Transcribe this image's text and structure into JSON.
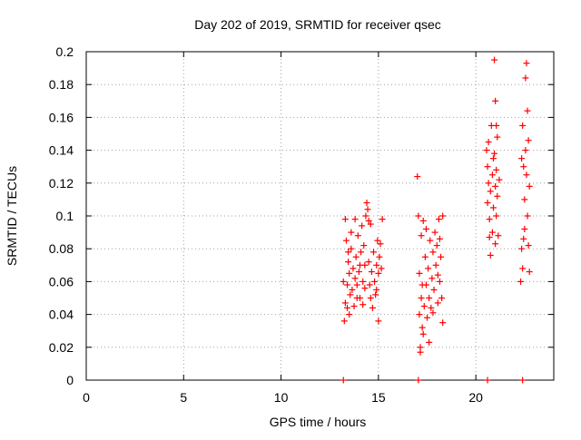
{
  "chart_data": {
    "type": "scatter",
    "title": "Day 202 of 2019, SRMTID for receiver qsec",
    "xlabel": "GPS time / hours",
    "ylabel": "SRMTID / TECUs",
    "xlim": [
      0,
      24
    ],
    "ylim": [
      0,
      0.2
    ],
    "x_ticks": [
      0,
      5,
      10,
      15,
      20
    ],
    "x_tick_labels": [
      "0",
      "5",
      "10",
      "15",
      "20"
    ],
    "y_ticks": [
      0,
      0.02,
      0.04,
      0.06,
      0.08,
      0.1,
      0.12,
      0.14,
      0.16,
      0.18,
      0.2
    ],
    "y_tick_labels": [
      "0",
      "0.02",
      "0.04",
      "0.06",
      "0.08",
      "0.1",
      "0.12",
      "0.14",
      "0.16",
      "0.18",
      "0.2"
    ],
    "grid": true,
    "marker": "+",
    "series": [
      {
        "name": "SRMTID",
        "color": "#ff0000",
        "points": [
          [
            13.2,
            0.06
          ],
          [
            13.3,
            0.047
          ],
          [
            13.3,
            0.098
          ],
          [
            13.35,
            0.085
          ],
          [
            13.4,
            0.058
          ],
          [
            13.45,
            0.072
          ],
          [
            13.5,
            0.04
          ],
          [
            13.5,
            0.065
          ],
          [
            13.55,
            0.052
          ],
          [
            13.6,
            0.09
          ],
          [
            13.65,
            0.055
          ],
          [
            13.7,
            0.068
          ],
          [
            13.75,
            0.045
          ],
          [
            13.8,
            0.098
          ],
          [
            13.8,
            0.062
          ],
          [
            13.85,
            0.075
          ],
          [
            13.9,
            0.058
          ],
          [
            13.95,
            0.088
          ],
          [
            14.0,
            0.066
          ],
          [
            14.05,
            0.05
          ],
          [
            14.1,
            0.078
          ],
          [
            14.15,
            0.094
          ],
          [
            14.2,
            0.06
          ],
          [
            14.25,
            0.082
          ],
          [
            14.3,
            0.07
          ],
          [
            14.35,
            0.1
          ],
          [
            14.4,
            0.108
          ],
          [
            14.45,
            0.104
          ],
          [
            14.5,
            0.097
          ],
          [
            14.5,
            0.072
          ],
          [
            14.55,
            0.058
          ],
          [
            14.6,
            0.05
          ],
          [
            14.65,
            0.066
          ],
          [
            14.7,
            0.044
          ],
          [
            14.75,
            0.078
          ],
          [
            14.8,
            0.06
          ],
          [
            14.85,
            0.052
          ],
          [
            14.9,
            0.07
          ],
          [
            14.95,
            0.085
          ],
          [
            15.0,
            0.065
          ],
          [
            15.0,
            0.036
          ],
          [
            15.05,
            0.075
          ],
          [
            15.1,
            0.083
          ],
          [
            15.15,
            0.068
          ],
          [
            15.2,
            0.098
          ],
          [
            13.25,
            0.036
          ],
          [
            13.4,
            0.044
          ],
          [
            13.6,
            0.08
          ],
          [
            13.9,
            0.05
          ],
          [
            14.2,
            0.046
          ],
          [
            14.6,
            0.095
          ],
          [
            14.9,
            0.055
          ],
          [
            13.45,
            0.078
          ],
          [
            14.05,
            0.07
          ],
          [
            14.3,
            0.056
          ],
          [
            17.0,
            0.124
          ],
          [
            17.05,
            0.1
          ],
          [
            17.1,
            0.04
          ],
          [
            17.1,
            0.065
          ],
          [
            17.15,
            0.02
          ],
          [
            17.2,
            0.05
          ],
          [
            17.2,
            0.088
          ],
          [
            17.25,
            0.032
          ],
          [
            17.3,
            0.097
          ],
          [
            17.35,
            0.045
          ],
          [
            17.4,
            0.075
          ],
          [
            17.45,
            0.058
          ],
          [
            17.5,
            0.038
          ],
          [
            17.55,
            0.068
          ],
          [
            17.6,
            0.05
          ],
          [
            17.65,
            0.085
          ],
          [
            17.7,
            0.044
          ],
          [
            17.75,
            0.062
          ],
          [
            17.8,
            0.078
          ],
          [
            17.85,
            0.055
          ],
          [
            17.9,
            0.09
          ],
          [
            17.95,
            0.07
          ],
          [
            18.0,
            0.082
          ],
          [
            18.05,
            0.064
          ],
          [
            18.1,
            0.098
          ],
          [
            18.15,
            0.06
          ],
          [
            18.2,
            0.075
          ],
          [
            18.25,
            0.05
          ],
          [
            18.3,
            0.1
          ],
          [
            18.3,
            0.035
          ],
          [
            17.15,
            0.017
          ],
          [
            17.3,
            0.028
          ],
          [
            17.6,
            0.023
          ],
          [
            17.45,
            0.092
          ],
          [
            18.05,
            0.047
          ],
          [
            17.8,
            0.041
          ],
          [
            17.25,
            0.058
          ],
          [
            18.15,
            0.086
          ],
          [
            20.55,
            0.14
          ],
          [
            20.6,
            0.13
          ],
          [
            20.6,
            0.108
          ],
          [
            20.65,
            0.145
          ],
          [
            20.7,
            0.087
          ],
          [
            20.7,
            0.098
          ],
          [
            20.75,
            0.115
          ],
          [
            20.75,
            0.076
          ],
          [
            20.8,
            0.155
          ],
          [
            20.85,
            0.125
          ],
          [
            20.85,
            0.09
          ],
          [
            20.9,
            0.105
          ],
          [
            20.95,
            0.195
          ],
          [
            20.95,
            0.138
          ],
          [
            21.0,
            0.17
          ],
          [
            21.0,
            0.118
          ],
          [
            21.0,
            0.083
          ],
          [
            21.05,
            0.128
          ],
          [
            21.05,
            0.1
          ],
          [
            21.1,
            0.148
          ],
          [
            21.1,
            0.112
          ],
          [
            21.15,
            0.088
          ],
          [
            21.2,
            0.122
          ],
          [
            20.65,
            0.12
          ],
          [
            21.05,
            0.155
          ],
          [
            20.9,
            0.135
          ],
          [
            22.3,
            0.06
          ],
          [
            22.35,
            0.08
          ],
          [
            22.4,
            0.155
          ],
          [
            22.4,
            0.068
          ],
          [
            22.45,
            0.13
          ],
          [
            22.5,
            0.11
          ],
          [
            22.5,
            0.092
          ],
          [
            22.55,
            0.14
          ],
          [
            22.55,
            0.184
          ],
          [
            22.6,
            0.193
          ],
          [
            22.6,
            0.125
          ],
          [
            22.65,
            0.1
          ],
          [
            22.65,
            0.164
          ],
          [
            22.7,
            0.082
          ],
          [
            22.7,
            0.146
          ],
          [
            22.75,
            0.066
          ],
          [
            22.75,
            0.118
          ],
          [
            22.45,
            0.086
          ],
          [
            22.35,
            0.135
          ]
        ]
      },
      {
        "name": "zero-level markers",
        "color": "#ff0000",
        "points": [
          [
            13.2,
            0.0
          ],
          [
            17.05,
            0.0
          ],
          [
            20.6,
            0.0
          ],
          [
            22.4,
            0.0
          ]
        ]
      }
    ]
  }
}
